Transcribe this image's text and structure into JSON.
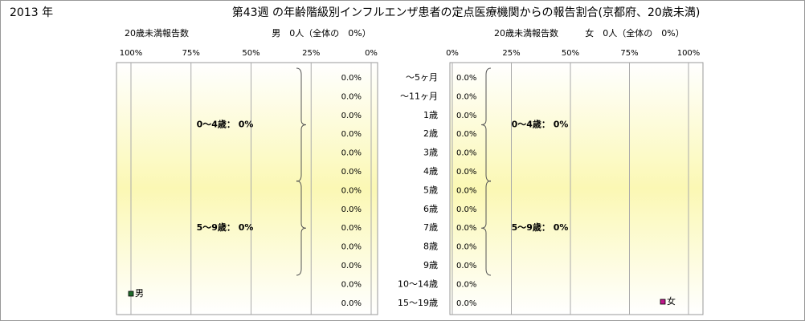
{
  "header": {
    "year": "2013 年",
    "title": "第43週 の年齢階級別インフルエンザ患者の定点医療機関からの報告割合(京都府、20歳未満)"
  },
  "chart_data": [
    {
      "type": "bar",
      "orientation": "horizontal",
      "x_reversed": true,
      "subtitle": "20歳未満報告数",
      "summary": "男　0人（全体の　0%）",
      "xlim": [
        0,
        100
      ],
      "xticks": [
        {
          "value": 100,
          "label": "100%"
        },
        {
          "value": 75,
          "label": "75%"
        },
        {
          "value": 50,
          "label": "50%"
        },
        {
          "value": 25,
          "label": "25%"
        },
        {
          "value": 0,
          "label": "0%"
        }
      ],
      "grid": true,
      "series": [
        {
          "name": "男",
          "color": "#1f6b2a",
          "values": [
            0,
            0,
            0,
            0,
            0,
            0,
            0,
            0,
            0,
            0,
            0,
            0,
            0
          ],
          "value_labels": [
            "0.0%",
            "0.0%",
            "0.0%",
            "0.0%",
            "0.0%",
            "0.0%",
            "0.0%",
            "0.0%",
            "0.0%",
            "0.0%",
            "0.0%",
            "0.0%",
            "0.0%"
          ]
        }
      ],
      "annotations": [
        "0～4歳：  0%",
        "5～9歳：  0%"
      ]
    },
    {
      "type": "bar",
      "orientation": "horizontal",
      "x_reversed": false,
      "subtitle": "20歳未満報告数",
      "summary": "女　0人（全体の　0%）",
      "categories": [
        "～5ヶ月",
        "～11ヶ月",
        "1歳",
        "2歳",
        "3歳",
        "4歳",
        "5歳",
        "6歳",
        "7歳",
        "8歳",
        "9歳",
        "10～14歳",
        "15～19歳"
      ],
      "xlim": [
        0,
        100
      ],
      "xticks": [
        {
          "value": 0,
          "label": "0%"
        },
        {
          "value": 25,
          "label": "25%"
        },
        {
          "value": 50,
          "label": "50%"
        },
        {
          "value": 75,
          "label": "75%"
        },
        {
          "value": 100,
          "label": "100%"
        }
      ],
      "grid": true,
      "series": [
        {
          "name": "女",
          "color": "#c0188a",
          "values": [
            0,
            0,
            0,
            0,
            0,
            0,
            0,
            0,
            0,
            0,
            0,
            0,
            0
          ],
          "value_labels": [
            "0.0%",
            "0.0%",
            "0.0%",
            "0.0%",
            "0.0%",
            "0.0%",
            "0.0%",
            "0.0%",
            "0.0%",
            "0.0%",
            "0.0%",
            "0.0%",
            "0.0%"
          ]
        }
      ],
      "annotations": [
        "0～4歳：  0%",
        "5～9歳：  0%"
      ]
    }
  ]
}
